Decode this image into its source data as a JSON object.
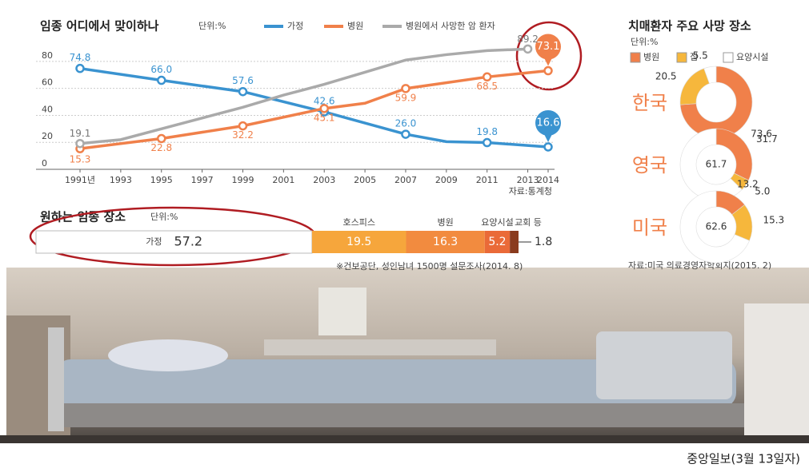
{
  "chart_data": [
    {
      "type": "line",
      "title": "임종 어디에서 맞이하나",
      "unit": "단위:%",
      "source": "자료:통계청",
      "xlim": [
        1991,
        2014
      ],
      "xticks": [
        {
          "value": 1991,
          "label": "1991년"
        },
        1993,
        1995,
        1997,
        1999,
        2001,
        2003,
        2005,
        2007,
        2009,
        2011,
        2013,
        2014
      ],
      "ylim": [
        0,
        90
      ],
      "yticks": [
        0,
        20,
        40,
        60,
        80
      ],
      "series": [
        {
          "name": "가정",
          "color": "#3a93d0",
          "x": [
            1991,
            1995,
            1999,
            2003,
            2007,
            2009,
            2011,
            2014
          ],
          "values": [
            74.8,
            66,
            57.6,
            42.6,
            26,
            20.5,
            19.8,
            16.6
          ],
          "value_labels": [
            "74.8",
            "66.0",
            "57.6",
            "42.6",
            "26.0",
            null,
            "19.8",
            "16.6"
          ]
        },
        {
          "name": "병원",
          "color": "#f0804a",
          "x": [
            1991,
            1995,
            1999,
            2003,
            2005,
            2007,
            2011,
            2014
          ],
          "values": [
            15.3,
            22.8,
            32.2,
            45.1,
            49,
            59.9,
            68.5,
            73.1
          ],
          "value_labels": [
            "15.3",
            "22.8",
            "32.2",
            "45.1",
            null,
            "59.9",
            "68.5",
            "73.1"
          ]
        },
        {
          "name": "병원에서 사망한 암 환자",
          "color": "#aaaaaa",
          "x": [
            1991,
            1993,
            1995,
            1997,
            1999,
            2001,
            2003,
            2005,
            2007,
            2009,
            2011,
            2013
          ],
          "values": [
            19.1,
            22,
            30,
            38,
            46,
            55,
            63,
            72,
            81,
            85,
            88,
            89.2
          ],
          "value_labels": [
            "19.1",
            null,
            null,
            null,
            null,
            null,
            null,
            null,
            null,
            null,
            null,
            "89.2"
          ]
        }
      ]
    },
    {
      "type": "stacked-bar",
      "title": "원하는 임종 장소",
      "unit": "단위:%",
      "note": "※건보공단, 성인남녀 1500명 설문조사(2014. 8)",
      "categories": [
        "가정",
        "호스피스",
        "병원",
        "요양시설",
        "교회 등"
      ],
      "values": [
        57.2,
        19.5,
        16.3,
        5.2,
        1.8
      ],
      "colors": [
        "#ffffff",
        "#f6a63c",
        "#f28b3f",
        "#ea6a38",
        "#8a3b1e"
      ],
      "xlim": [
        0,
        100
      ]
    },
    {
      "type": "donut",
      "title": "치매환자 주요 사망 장소",
      "unit": "단위:%",
      "source": "자료:미국 의료경영자학회지(2015. 2)",
      "labels": [
        "병원",
        "집",
        "요양시설"
      ],
      "colors": [
        "#f0804a",
        "#f6b73c",
        "#ffffff"
      ],
      "groups": [
        {
          "name": "한국",
          "values": [
            73.6,
            20.5,
            5.5
          ]
        },
        {
          "name": "영국",
          "values": [
            31.7,
            5,
            61.7
          ],
          "value_labels": [
            "31.7",
            "5.0",
            "61.7"
          ]
        },
        {
          "name": "미국",
          "values": [
            13.2,
            15.3,
            62.6
          ]
        }
      ]
    }
  ],
  "credit": "중앙일보(3월 13일자)"
}
